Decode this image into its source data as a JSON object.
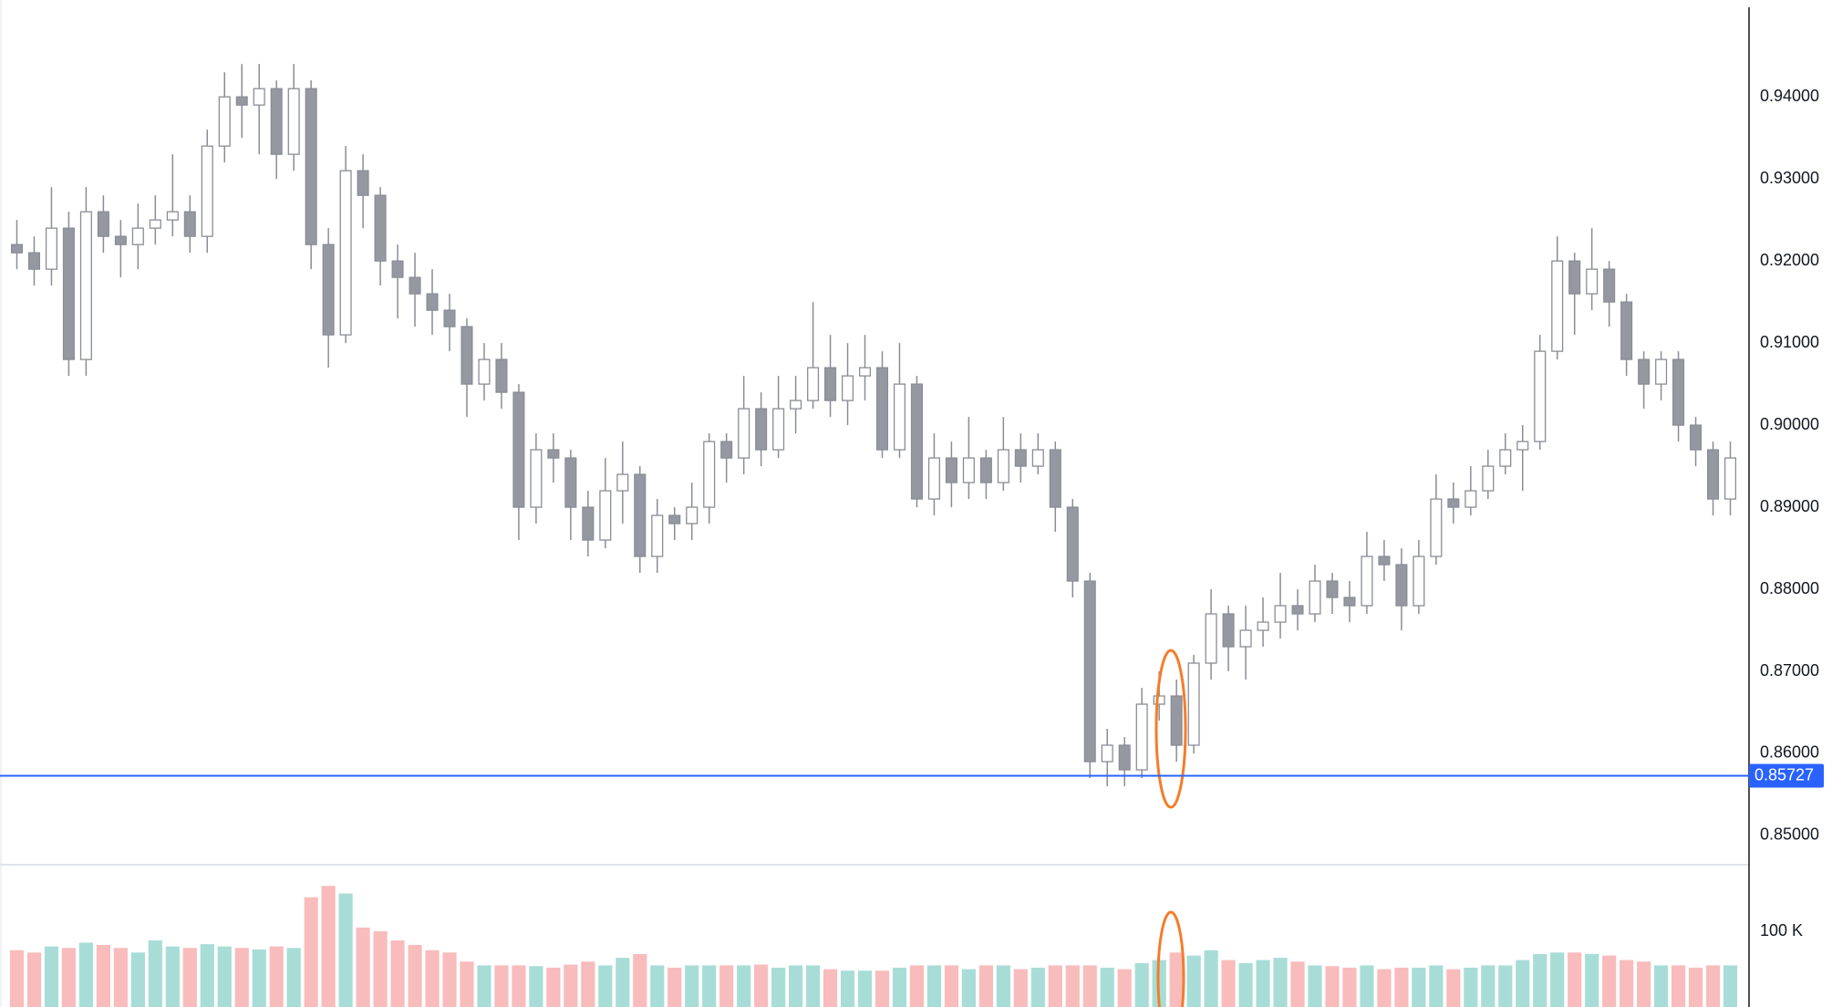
{
  "chart_data": {
    "type": "candlestick",
    "open": [
      0.922,
      0.921,
      0.919,
      0.924,
      0.908,
      0.926,
      0.923,
      0.922,
      0.924,
      0.925,
      0.926,
      0.923,
      0.934,
      0.94,
      0.939,
      0.941,
      0.933,
      0.941,
      0.922,
      0.911,
      0.931,
      0.928,
      0.92,
      0.918,
      0.916,
      0.914,
      0.912,
      0.905,
      0.908,
      0.904,
      0.89,
      0.897,
      0.896,
      0.89,
      0.886,
      0.892,
      0.894,
      0.884,
      0.889,
      0.888,
      0.89,
      0.898,
      0.896,
      0.902,
      0.897,
      0.902,
      0.903,
      0.907,
      0.903,
      0.906,
      0.907,
      0.897,
      0.905,
      0.891,
      0.896,
      0.893,
      0.896,
      0.893,
      0.897,
      0.895,
      0.897,
      0.89,
      0.881,
      0.859,
      0.861,
      0.858,
      0.866,
      0.867,
      0.861,
      0.871,
      0.877,
      0.873,
      0.875,
      0.876,
      0.878,
      0.877,
      0.881,
      0.879,
      0.878,
      0.884,
      0.883,
      0.878,
      0.884,
      0.891,
      0.89,
      0.892,
      0.895,
      0.897,
      0.898,
      0.909,
      0.92,
      0.916,
      0.919,
      0.915,
      0.908,
      0.905,
      0.908,
      0.9,
      0.897,
      0.891
    ],
    "high": [
      0.925,
      0.923,
      0.929,
      0.926,
      0.929,
      0.928,
      0.925,
      0.927,
      0.928,
      0.933,
      0.928,
      0.936,
      0.943,
      0.944,
      0.944,
      0.942,
      0.944,
      0.942,
      0.924,
      0.934,
      0.933,
      0.929,
      0.922,
      0.921,
      0.919,
      0.916,
      0.913,
      0.91,
      0.91,
      0.905,
      0.899,
      0.899,
      0.897,
      0.892,
      0.896,
      0.898,
      0.895,
      0.891,
      0.89,
      0.893,
      0.899,
      0.899,
      0.906,
      0.904,
      0.906,
      0.906,
      0.915,
      0.911,
      0.91,
      0.911,
      0.909,
      0.91,
      0.906,
      0.899,
      0.898,
      0.901,
      0.897,
      0.901,
      0.899,
      0.899,
      0.898,
      0.891,
      0.882,
      0.863,
      0.862,
      0.868,
      0.87,
      0.869,
      0.872,
      0.88,
      0.878,
      0.878,
      0.879,
      0.882,
      0.88,
      0.883,
      0.882,
      0.881,
      0.887,
      0.886,
      0.885,
      0.886,
      0.894,
      0.893,
      0.895,
      0.897,
      0.899,
      0.9,
      0.911,
      0.923,
      0.921,
      0.924,
      0.92,
      0.916,
      0.909,
      0.909,
      0.909,
      0.901,
      0.898,
      0.898
    ],
    "low": [
      0.919,
      0.917,
      0.917,
      0.906,
      0.906,
      0.921,
      0.918,
      0.919,
      0.922,
      0.923,
      0.921,
      0.921,
      0.932,
      0.935,
      0.933,
      0.93,
      0.931,
      0.919,
      0.907,
      0.91,
      0.924,
      0.917,
      0.913,
      0.912,
      0.911,
      0.909,
      0.901,
      0.903,
      0.902,
      0.886,
      0.888,
      0.893,
      0.886,
      0.884,
      0.885,
      0.888,
      0.882,
      0.882,
      0.886,
      0.886,
      0.888,
      0.893,
      0.894,
      0.895,
      0.896,
      0.899,
      0.902,
      0.901,
      0.9,
      0.903,
      0.896,
      0.896,
      0.89,
      0.889,
      0.89,
      0.891,
      0.891,
      0.892,
      0.893,
      0.894,
      0.887,
      0.879,
      0.857,
      0.856,
      0.856,
      0.857,
      0.864,
      0.859,
      0.86,
      0.869,
      0.87,
      0.869,
      0.873,
      0.874,
      0.875,
      0.876,
      0.877,
      0.876,
      0.877,
      0.881,
      0.875,
      0.877,
      0.883,
      0.888,
      0.889,
      0.891,
      0.894,
      0.892,
      0.897,
      0.908,
      0.911,
      0.914,
      0.912,
      0.906,
      0.902,
      0.903,
      0.898,
      0.895,
      0.889,
      0.889
    ],
    "close": [
      0.921,
      0.919,
      0.924,
      0.908,
      0.926,
      0.923,
      0.922,
      0.924,
      0.925,
      0.926,
      0.923,
      0.934,
      0.94,
      0.939,
      0.941,
      0.933,
      0.941,
      0.922,
      0.911,
      0.931,
      0.928,
      0.92,
      0.918,
      0.916,
      0.914,
      0.912,
      0.905,
      0.908,
      0.904,
      0.89,
      0.897,
      0.896,
      0.89,
      0.886,
      0.892,
      0.894,
      0.884,
      0.889,
      0.888,
      0.89,
      0.898,
      0.896,
      0.902,
      0.897,
      0.902,
      0.903,
      0.907,
      0.903,
      0.906,
      0.907,
      0.897,
      0.905,
      0.891,
      0.896,
      0.893,
      0.896,
      0.893,
      0.897,
      0.895,
      0.897,
      0.89,
      0.881,
      0.859,
      0.861,
      0.858,
      0.866,
      0.867,
      0.861,
      0.871,
      0.877,
      0.873,
      0.875,
      0.876,
      0.878,
      0.877,
      0.881,
      0.879,
      0.878,
      0.884,
      0.883,
      0.878,
      0.884,
      0.891,
      0.89,
      0.892,
      0.895,
      0.897,
      0.898,
      0.909,
      0.92,
      0.916,
      0.919,
      0.915,
      0.908,
      0.905,
      0.908,
      0.9,
      0.897,
      0.891,
      0.896
    ],
    "ylim": [
      0.84644,
      0.9518
    ],
    "yticks": [
      {
        "value": 0.85,
        "label": "0.85000"
      },
      {
        "value": 0.86,
        "label": "0.86000"
      },
      {
        "value": 0.87,
        "label": "0.87000"
      },
      {
        "value": 0.88,
        "label": "0.88000"
      },
      {
        "value": 0.89,
        "label": "0.89000"
      },
      {
        "value": 0.9,
        "label": "0.90000"
      },
      {
        "value": 0.91,
        "label": "0.91000"
      },
      {
        "value": 0.92,
        "label": "0.92000"
      },
      {
        "value": 0.93,
        "label": "0.93000"
      },
      {
        "value": 0.94,
        "label": "0.94000"
      }
    ],
    "price_line": {
      "value": 0.85727,
      "label": "0.85727",
      "color": "#2962ff"
    },
    "up_color": "#ffffff",
    "down_color": "#9598a1",
    "wick_color": "#8a8d96",
    "volume": {
      "values": [
        75000,
        72000,
        80000,
        78000,
        85000,
        82000,
        78000,
        72000,
        88000,
        80000,
        78000,
        83000,
        80000,
        78000,
        76000,
        80000,
        78000,
        145000,
        160000,
        150000,
        105000,
        100000,
        88000,
        82000,
        75000,
        72000,
        60000,
        55000,
        55000,
        55000,
        54000,
        52000,
        56000,
        60000,
        55000,
        65000,
        70000,
        55000,
        52000,
        55000,
        55000,
        55000,
        55000,
        56000,
        52000,
        55000,
        55000,
        50000,
        48000,
        48000,
        48000,
        52000,
        55000,
        55000,
        55000,
        50000,
        55000,
        55000,
        50000,
        52000,
        55000,
        55000,
        55000,
        52000,
        50000,
        58000,
        62000,
        72000,
        68000,
        75000,
        62000,
        58000,
        62000,
        65000,
        60000,
        55000,
        54000,
        52000,
        55000,
        50000,
        52000,
        52000,
        55000,
        50000,
        52000,
        55000,
        55000,
        62000,
        70000,
        72000,
        72000,
        70000,
        68000,
        62000,
        60000,
        55000,
        55000,
        52000,
        55000,
        55000
      ],
      "ylim": [
        0,
        188000
      ],
      "yticks": [
        {
          "value": 100000,
          "label": "100 K"
        }
      ],
      "up_color": "#a8ddd7",
      "down_color": "#f8bcbc"
    }
  }
}
